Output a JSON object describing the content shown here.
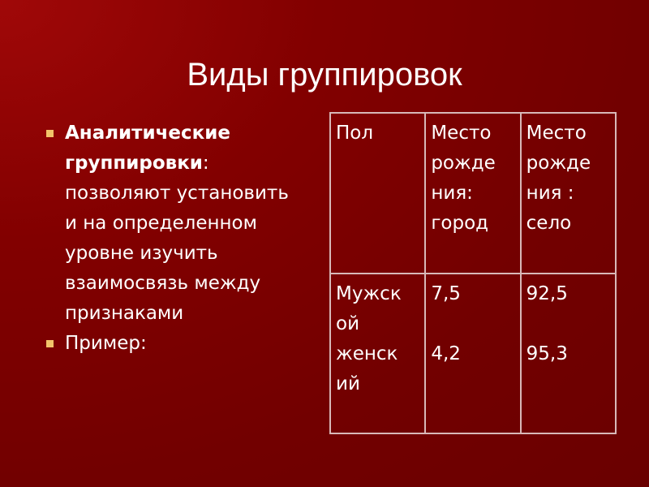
{
  "title": "Виды группировок",
  "bullets": [
    {
      "bold": "Аналитические группировки",
      "rest_colon": ":",
      "text": "позволяют установить и на определенном уровне изучить взаимосвязь между признаками"
    },
    {
      "text": "Пример:"
    }
  ],
  "table": {
    "headers": [
      [
        "Пол"
      ],
      [
        "Место",
        "рожде",
        "ния:",
        "город"
      ],
      [
        "Место",
        "рожде",
        "ния :",
        "село"
      ]
    ],
    "rows": [
      {
        "sex": [
          "Мужск",
          "ой"
        ],
        "city": "7,5",
        "village": "92,5"
      },
      {
        "sex": [
          "женск",
          "ий"
        ],
        "city": "4,2",
        "village": "95,3"
      }
    ]
  },
  "colors": {
    "background": "#720000",
    "bullet": "#f2c46a",
    "text": "#ffffff"
  }
}
